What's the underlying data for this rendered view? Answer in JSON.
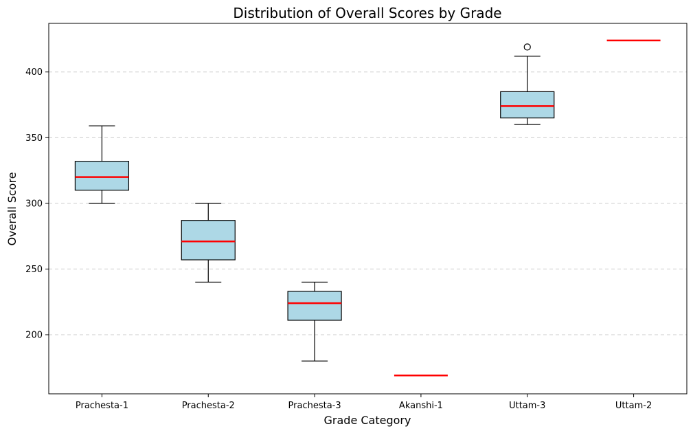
{
  "chart_data": {
    "type": "box",
    "title": "Distribution of Overall Scores by Grade",
    "xlabel": "Grade Category",
    "ylabel": "Overall Score",
    "ylim": [
      155,
      437
    ],
    "yticks": [
      200,
      250,
      300,
      350,
      400
    ],
    "grid": "y-dashed",
    "colors": {
      "box_fill": "#add8e6",
      "median": "#ff0000",
      "stroke": "#000000",
      "grid": "#cccccc"
    },
    "categories": [
      "Prachesta-1",
      "Prachesta-2",
      "Prachesta-3",
      "Akanshi-1",
      "Uttam-3",
      "Uttam-2"
    ],
    "boxes": [
      {
        "category": "Prachesta-1",
        "whisker_low": 300,
        "q1": 310,
        "median": 320,
        "q3": 332,
        "whisker_high": 359,
        "outliers": []
      },
      {
        "category": "Prachesta-2",
        "whisker_low": 240,
        "q1": 257,
        "median": 271,
        "q3": 287,
        "whisker_high": 300,
        "outliers": []
      },
      {
        "category": "Prachesta-3",
        "whisker_low": 180,
        "q1": 211,
        "median": 224,
        "q3": 233,
        "whisker_high": 240,
        "outliers": []
      },
      {
        "category": "Akanshi-1",
        "whisker_low": 169,
        "q1": 169,
        "median": 169,
        "q3": 169,
        "whisker_high": 169,
        "outliers": []
      },
      {
        "category": "Uttam-3",
        "whisker_low": 360,
        "q1": 365,
        "median": 374,
        "q3": 385,
        "whisker_high": 412,
        "outliers": [
          419
        ]
      },
      {
        "category": "Uttam-2",
        "whisker_low": 424,
        "q1": 424,
        "median": 424,
        "q3": 424,
        "whisker_high": 424,
        "outliers": []
      }
    ]
  }
}
